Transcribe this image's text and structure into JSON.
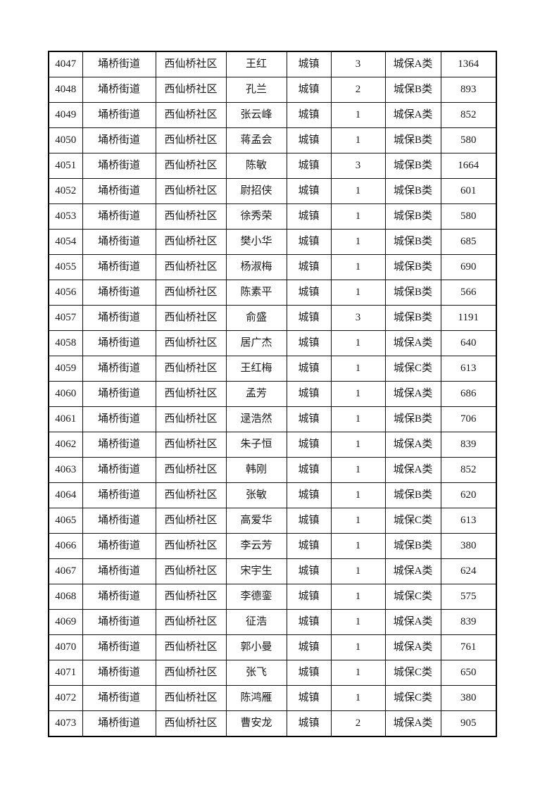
{
  "page": {
    "background_color": "#ffffff",
    "border_color": "#000000",
    "text_color": "#1a1a1a"
  },
  "table": {
    "columns": [
      {
        "key": "id",
        "semantic": "record-number"
      },
      {
        "key": "street",
        "semantic": "street-name"
      },
      {
        "key": "community",
        "semantic": "community-name"
      },
      {
        "key": "name",
        "semantic": "person-name"
      },
      {
        "key": "type",
        "semantic": "residency-type"
      },
      {
        "key": "count",
        "semantic": "household-count"
      },
      {
        "key": "category",
        "semantic": "benefit-category"
      },
      {
        "key": "amount",
        "semantic": "amount"
      }
    ],
    "rows": [
      [
        "4047",
        "埇桥街道",
        "西仙桥社区",
        "王红",
        "城镇",
        "3",
        "城保A类",
        "1364"
      ],
      [
        "4048",
        "埇桥街道",
        "西仙桥社区",
        "孔兰",
        "城镇",
        "2",
        "城保B类",
        "893"
      ],
      [
        "4049",
        "埇桥街道",
        "西仙桥社区",
        "张云峰",
        "城镇",
        "1",
        "城保A类",
        "852"
      ],
      [
        "4050",
        "埇桥街道",
        "西仙桥社区",
        "蒋孟会",
        "城镇",
        "1",
        "城保B类",
        "580"
      ],
      [
        "4051",
        "埇桥街道",
        "西仙桥社区",
        "陈敏",
        "城镇",
        "3",
        "城保B类",
        "1664"
      ],
      [
        "4052",
        "埇桥街道",
        "西仙桥社区",
        "尉招侠",
        "城镇",
        "1",
        "城保B类",
        "601"
      ],
      [
        "4053",
        "埇桥街道",
        "西仙桥社区",
        "徐秀荣",
        "城镇",
        "1",
        "城保B类",
        "580"
      ],
      [
        "4054",
        "埇桥街道",
        "西仙桥社区",
        "樊小华",
        "城镇",
        "1",
        "城保B类",
        "685"
      ],
      [
        "4055",
        "埇桥街道",
        "西仙桥社区",
        "杨淑梅",
        "城镇",
        "1",
        "城保B类",
        "690"
      ],
      [
        "4056",
        "埇桥街道",
        "西仙桥社区",
        "陈素平",
        "城镇",
        "1",
        "城保B类",
        "566"
      ],
      [
        "4057",
        "埇桥街道",
        "西仙桥社区",
        "俞盛",
        "城镇",
        "3",
        "城保B类",
        "1191"
      ],
      [
        "4058",
        "埇桥街道",
        "西仙桥社区",
        "居广杰",
        "城镇",
        "1",
        "城保A类",
        "640"
      ],
      [
        "4059",
        "埇桥街道",
        "西仙桥社区",
        "王红梅",
        "城镇",
        "1",
        "城保C类",
        "613"
      ],
      [
        "4060",
        "埇桥街道",
        "西仙桥社区",
        "孟芳",
        "城镇",
        "1",
        "城保A类",
        "686"
      ],
      [
        "4061",
        "埇桥街道",
        "西仙桥社区",
        "逯浩然",
        "城镇",
        "1",
        "城保B类",
        "706"
      ],
      [
        "4062",
        "埇桥街道",
        "西仙桥社区",
        "朱子恒",
        "城镇",
        "1",
        "城保A类",
        "839"
      ],
      [
        "4063",
        "埇桥街道",
        "西仙桥社区",
        "韩刚",
        "城镇",
        "1",
        "城保A类",
        "852"
      ],
      [
        "4064",
        "埇桥街道",
        "西仙桥社区",
        "张敏",
        "城镇",
        "1",
        "城保B类",
        "620"
      ],
      [
        "4065",
        "埇桥街道",
        "西仙桥社区",
        "高爱华",
        "城镇",
        "1",
        "城保C类",
        "613"
      ],
      [
        "4066",
        "埇桥街道",
        "西仙桥社区",
        "李云芳",
        "城镇",
        "1",
        "城保B类",
        "380"
      ],
      [
        "4067",
        "埇桥街道",
        "西仙桥社区",
        "宋宇生",
        "城镇",
        "1",
        "城保A类",
        "624"
      ],
      [
        "4068",
        "埇桥街道",
        "西仙桥社区",
        "李德銮",
        "城镇",
        "1",
        "城保C类",
        "575"
      ],
      [
        "4069",
        "埇桥街道",
        "西仙桥社区",
        "征浩",
        "城镇",
        "1",
        "城保A类",
        "839"
      ],
      [
        "4070",
        "埇桥街道",
        "西仙桥社区",
        "郭小曼",
        "城镇",
        "1",
        "城保A类",
        "761"
      ],
      [
        "4071",
        "埇桥街道",
        "西仙桥社区",
        "张飞",
        "城镇",
        "1",
        "城保C类",
        "650"
      ],
      [
        "4072",
        "埇桥街道",
        "西仙桥社区",
        "陈鸿雁",
        "城镇",
        "1",
        "城保C类",
        "380"
      ],
      [
        "4073",
        "埇桥街道",
        "西仙桥社区",
        "曹安龙",
        "城镇",
        "2",
        "城保A类",
        "905"
      ]
    ]
  }
}
